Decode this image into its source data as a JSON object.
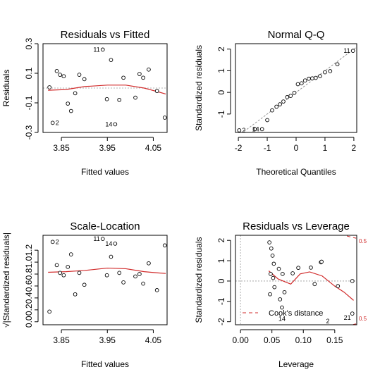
{
  "chart_data": [
    {
      "type": "scatter",
      "title": "Residuals vs Fitted",
      "xlabel": "Fitted values",
      "ylabel": "Residuals",
      "xlim": [
        3.81,
        4.08
      ],
      "ylim": [
        -0.3,
        0.3
      ],
      "xticks": [
        3.85,
        3.95,
        4.05
      ],
      "xticklabels": [
        "3.85",
        "3.95",
        "4.05"
      ],
      "yticks": [
        -0.3,
        -0.1,
        0.1,
        0.3
      ],
      "yticklabels": [
        "-0.3",
        "-0.1",
        "0.1",
        "0.3"
      ],
      "reference_line": 0,
      "points": [
        {
          "x": 3.824,
          "y": 0.005
        },
        {
          "x": 3.831,
          "y": -0.235,
          "label": "2"
        },
        {
          "x": 3.84,
          "y": 0.115
        },
        {
          "x": 3.847,
          "y": 0.09
        },
        {
          "x": 3.855,
          "y": 0.08
        },
        {
          "x": 3.864,
          "y": -0.105
        },
        {
          "x": 3.871,
          "y": -0.155
        },
        {
          "x": 3.88,
          "y": -0.035
        },
        {
          "x": 3.889,
          "y": 0.09
        },
        {
          "x": 3.9,
          "y": 0.06
        },
        {
          "x": 3.94,
          "y": 0.26,
          "label": "11"
        },
        {
          "x": 3.949,
          "y": -0.075
        },
        {
          "x": 3.958,
          "y": 0.19
        },
        {
          "x": 3.967,
          "y": -0.245,
          "label": "14"
        },
        {
          "x": 3.976,
          "y": -0.08
        },
        {
          "x": 3.985,
          "y": 0.07
        },
        {
          "x": 4.011,
          "y": -0.065
        },
        {
          "x": 4.02,
          "y": 0.095
        },
        {
          "x": 4.028,
          "y": 0.07
        },
        {
          "x": 4.04,
          "y": 0.125
        },
        {
          "x": 4.058,
          "y": -0.02
        },
        {
          "x": 4.075,
          "y": -0.2
        }
      ],
      "smooth": [
        [
          3.821,
          -0.015
        ],
        [
          3.86,
          -0.01
        ],
        [
          3.9,
          0.01
        ],
        [
          3.95,
          0.02
        ],
        [
          3.99,
          0.02
        ],
        [
          4.03,
          0.0
        ],
        [
          4.06,
          -0.025
        ],
        [
          4.077,
          -0.04
        ]
      ]
    },
    {
      "type": "scatter",
      "title": "Normal Q-Q",
      "xlabel": "Theoretical Quantiles",
      "ylabel": "Standardized residuals",
      "xlim": [
        -2.1,
        2.1
      ],
      "ylim": [
        -1.85,
        2.25
      ],
      "xticks": [
        -2,
        -1,
        0,
        1,
        2
      ],
      "xticklabels": [
        "-2",
        "-1",
        "0",
        "1",
        "2"
      ],
      "yticks": [
        -1,
        0,
        1,
        2
      ],
      "yticklabels": [
        "-1",
        "0",
        "1",
        "2"
      ],
      "reference_line_points": [
        [
          -2.1,
          -2.1
        ],
        [
          2.1,
          2.1
        ]
      ],
      "points": [
        {
          "x": -1.97,
          "y": -1.75,
          "label": "2"
        },
        {
          "x": -1.43,
          "y": -1.7
        },
        {
          "x": -1.18,
          "y": -1.7,
          "label": "14"
        },
        {
          "x": -1.0,
          "y": -1.28
        },
        {
          "x": -0.83,
          "y": -0.83
        },
        {
          "x": -0.68,
          "y": -0.66
        },
        {
          "x": -0.56,
          "y": -0.55
        },
        {
          "x": -0.44,
          "y": -0.42
        },
        {
          "x": -0.31,
          "y": -0.22
        },
        {
          "x": -0.19,
          "y": -0.16
        },
        {
          "x": -0.06,
          "y": -0.02
        },
        {
          "x": 0.06,
          "y": 0.38
        },
        {
          "x": 0.19,
          "y": 0.42
        },
        {
          "x": 0.31,
          "y": 0.55
        },
        {
          "x": 0.44,
          "y": 0.63
        },
        {
          "x": 0.56,
          "y": 0.65
        },
        {
          "x": 0.68,
          "y": 0.67
        },
        {
          "x": 0.83,
          "y": 0.75
        },
        {
          "x": 1.0,
          "y": 0.93
        },
        {
          "x": 1.18,
          "y": 0.98
        },
        {
          "x": 1.43,
          "y": 1.3
        },
        {
          "x": 1.97,
          "y": 1.92,
          "label": "11"
        }
      ]
    },
    {
      "type": "scatter",
      "title": "Scale-Location",
      "xlabel": "Fitted values",
      "ylabel": "√|Standardized residuals|",
      "xlim": [
        3.81,
        4.08
      ],
      "ylim": [
        -0.05,
        1.45
      ],
      "xticks": [
        3.85,
        3.95,
        4.05
      ],
      "xticklabels": [
        "3.85",
        "3.95",
        "4.05"
      ],
      "yticks": [
        0.0,
        0.2,
        0.4,
        0.6,
        0.8,
        1.0,
        1.2
      ],
      "yticklabels": [
        "0.0",
        "0.2",
        "0.4",
        "0.6",
        "0.8",
        "1.0",
        "1.2"
      ],
      "points": [
        {
          "x": 3.824,
          "y": 0.17
        },
        {
          "x": 3.831,
          "y": 1.34,
          "label": "2"
        },
        {
          "x": 3.84,
          "y": 0.95
        },
        {
          "x": 3.847,
          "y": 0.82
        },
        {
          "x": 3.855,
          "y": 0.78
        },
        {
          "x": 3.864,
          "y": 0.92
        },
        {
          "x": 3.871,
          "y": 1.13
        },
        {
          "x": 3.88,
          "y": 0.46
        },
        {
          "x": 3.889,
          "y": 0.82
        },
        {
          "x": 3.9,
          "y": 0.62
        },
        {
          "x": 3.94,
          "y": 1.39,
          "label": "11"
        },
        {
          "x": 3.949,
          "y": 0.78
        },
        {
          "x": 3.958,
          "y": 1.09
        },
        {
          "x": 3.967,
          "y": 1.31,
          "label": "14"
        },
        {
          "x": 3.976,
          "y": 0.82
        },
        {
          "x": 3.985,
          "y": 0.66
        },
        {
          "x": 4.011,
          "y": 0.76
        },
        {
          "x": 4.02,
          "y": 0.8
        },
        {
          "x": 4.028,
          "y": 0.64
        },
        {
          "x": 4.04,
          "y": 0.98
        },
        {
          "x": 4.058,
          "y": 0.53
        },
        {
          "x": 4.075,
          "y": 1.28
        }
      ],
      "smooth": [
        [
          3.821,
          0.83
        ],
        [
          3.86,
          0.84
        ],
        [
          3.9,
          0.86
        ],
        [
          3.95,
          0.9
        ],
        [
          3.99,
          0.89
        ],
        [
          4.03,
          0.84
        ],
        [
          4.06,
          0.82
        ],
        [
          4.077,
          0.81
        ]
      ]
    },
    {
      "type": "scatter",
      "title": "Residuals vs Leverage",
      "xlabel": "Leverage",
      "ylabel": "Standardized residuals",
      "xlim": [
        -0.008,
        0.185
      ],
      "ylim": [
        -2.15,
        2.25
      ],
      "xticks": [
        0.0,
        0.05,
        0.1,
        0.15
      ],
      "xticklabels": [
        "0.00",
        "0.05",
        "0.10",
        "0.15"
      ],
      "yticks": [
        -2,
        -1,
        0,
        1,
        2
      ],
      "yticklabels": [
        "-2",
        "-1",
        "0",
        "1",
        "2"
      ],
      "reference_h": 0,
      "reference_v": 0,
      "points": [
        {
          "x": 0.046,
          "y": 1.9
        },
        {
          "x": 0.049,
          "y": 1.6
        },
        {
          "x": 0.051,
          "y": 1.25
        },
        {
          "x": 0.053,
          "y": 0.85
        },
        {
          "x": 0.048,
          "y": 0.35
        },
        {
          "x": 0.052,
          "y": 0.15
        },
        {
          "x": 0.047,
          "y": -0.65
        },
        {
          "x": 0.054,
          "y": -0.3
        },
        {
          "x": 0.061,
          "y": 0.6
        },
        {
          "x": 0.067,
          "y": 0.35
        },
        {
          "x": 0.063,
          "y": -0.9
        },
        {
          "x": 0.07,
          "y": -0.55
        },
        {
          "x": 0.066,
          "y": -1.3
        },
        {
          "x": 0.083,
          "y": 0.38
        },
        {
          "x": 0.092,
          "y": 0.65
        },
        {
          "x": 0.112,
          "y": 0.66
        },
        {
          "x": 0.128,
          "y": 0.92
        },
        {
          "x": 0.118,
          "y": -0.15
        },
        {
          "x": 0.129,
          "y": 0.95
        },
        {
          "x": 0.155,
          "y": -0.25
        },
        {
          "x": 0.178,
          "y": 0.0
        },
        {
          "x": 0.178,
          "y": -1.6
        }
      ],
      "point_labels": [
        {
          "text": "14",
          "x": 0.066,
          "y": -1.85
        },
        {
          "text": "2",
          "x": 0.139,
          "y": -1.98
        },
        {
          "text": "21",
          "x": 0.17,
          "y": -1.8
        }
      ],
      "smooth": [
        [
          0.045,
          0.5
        ],
        [
          0.06,
          0.1
        ],
        [
          0.08,
          -0.15
        ],
        [
          0.095,
          0.35
        ],
        [
          0.11,
          0.45
        ],
        [
          0.13,
          0.25
        ],
        [
          0.15,
          -0.25
        ],
        [
          0.165,
          -0.55
        ],
        [
          0.18,
          -0.95
        ]
      ],
      "cooks_levels": [
        "0.5",
        "0.5"
      ],
      "legend": {
        "entries": [
          "Cook's distance"
        ],
        "position": "bottom-left"
      }
    }
  ]
}
